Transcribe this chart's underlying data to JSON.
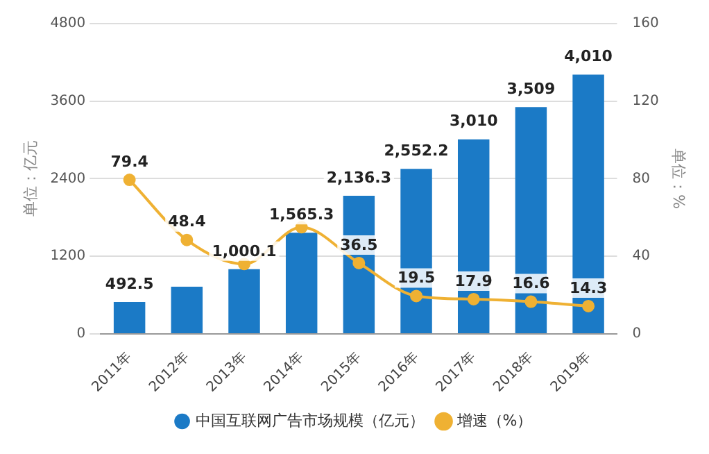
{
  "chart_data": {
    "type": "bar",
    "categories": [
      "2011年",
      "2012年",
      "2013年",
      "2014年",
      "2015年",
      "2016年",
      "2017年",
      "2018年",
      "2019年"
    ],
    "series": [
      {
        "name": "中国互联网广告市场规模（亿元）",
        "color": "#1b7ac6",
        "values": [
          492.5,
          730,
          1000.1,
          1565.3,
          2136.3,
          2552.2,
          3010,
          3509,
          4010
        ],
        "value_labels": [
          "492.5",
          null,
          "1,000.1",
          "1,565.3",
          "2,136.3",
          "2,552.2",
          "3,010",
          "3,509",
          "4,010"
        ]
      },
      {
        "name": "增速（%）",
        "type": "line",
        "axis": "y2",
        "color": "#efb133",
        "values": [
          79.4,
          48.4,
          36,
          55,
          36.5,
          19.5,
          17.9,
          16.6,
          14.3
        ],
        "value_labels": [
          "79.4",
          "48.4",
          null,
          null,
          "36.5",
          "19.5",
          "17.9",
          "16.6",
          "14.3"
        ]
      }
    ],
    "ylabel": "单位：亿元",
    "y2label": "单位：%",
    "ylim": [
      0,
      4800
    ],
    "yticks": [
      0,
      1200,
      2400,
      3600,
      4800
    ],
    "y2lim": [
      0,
      160
    ],
    "y2ticks": [
      0,
      40,
      80,
      120,
      160
    ],
    "grid": "y",
    "legend": "bottom",
    "marker": "circle"
  }
}
